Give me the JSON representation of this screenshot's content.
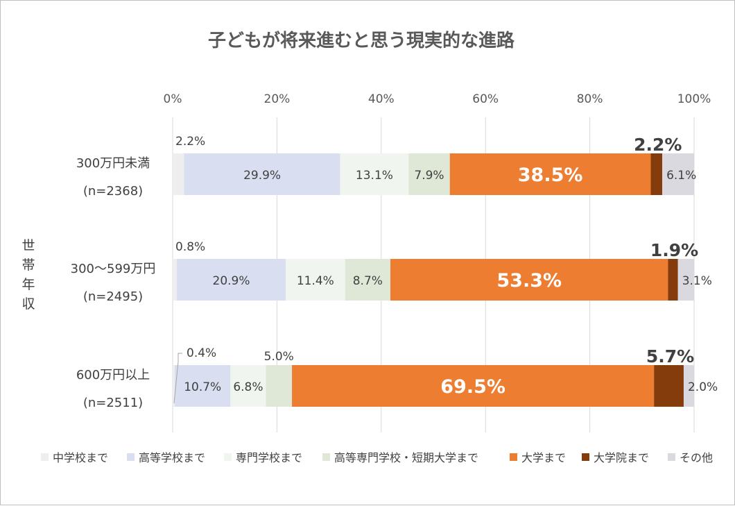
{
  "chart_data": {
    "type": "bar",
    "orientation": "horizontal",
    "stacked": "percent",
    "title": "子どもが将来進むと思う現実的な進路",
    "ylabel": "世帯年収",
    "xlim": [
      0,
      100
    ],
    "x_ticks": [
      "0%",
      "20%",
      "40%",
      "60%",
      "80%",
      "100%"
    ],
    "grid": true,
    "legend_position": "bottom",
    "categories": [
      {
        "label": "300万円未満",
        "n": "(n=2368)"
      },
      {
        "label": "300〜599万円",
        "n": "(n=2495)"
      },
      {
        "label": "600万円以上",
        "n": "(n=2511)"
      }
    ],
    "series": [
      {
        "name": "中学校まで",
        "color": "#eeeeee",
        "values": [
          2.2,
          0.8,
          0.4
        ],
        "labels": [
          "2.2%",
          "0.8%",
          "0.4%"
        ]
      },
      {
        "name": "高等学校まで",
        "color": "#d9dff1",
        "values": [
          29.9,
          20.9,
          10.7
        ],
        "labels": [
          "29.9%",
          "20.9%",
          "10.7%"
        ]
      },
      {
        "name": "専門学校まで",
        "color": "#f1f5f0",
        "values": [
          13.1,
          11.4,
          6.8
        ],
        "labels": [
          "13.1%",
          "11.4%",
          "6.8%"
        ]
      },
      {
        "name": "高等専門学校・短期大学まで",
        "color": "#dfe8d7",
        "values": [
          7.9,
          8.7,
          5.0
        ],
        "labels": [
          "7.9%",
          "8.7%",
          "5.0%"
        ]
      },
      {
        "name": "大学まで",
        "color": "#ed7d31",
        "values": [
          38.5,
          53.3,
          69.5
        ],
        "labels": [
          "38.5%",
          "53.3%",
          "69.5%"
        ]
      },
      {
        "name": "大学院まで",
        "color": "#843c0c",
        "values": [
          2.2,
          1.9,
          5.7
        ],
        "labels": [
          "2.2%",
          "1.9%",
          "5.7%"
        ]
      },
      {
        "name": "その他",
        "color": "#d9d9df",
        "values": [
          6.1,
          3.1,
          2.0
        ],
        "labels": [
          "6.1%",
          "3.1%",
          "2.0%"
        ]
      }
    ]
  }
}
